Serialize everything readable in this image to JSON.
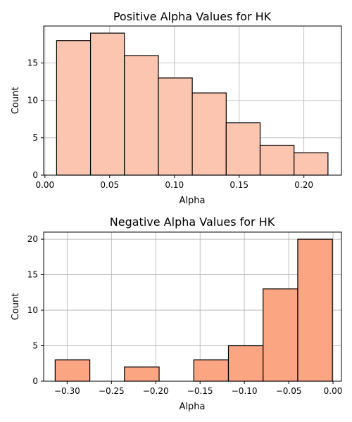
{
  "chart_data": [
    {
      "type": "bar",
      "title": "Positive Alpha Values for HK",
      "xlabel": "Alpha",
      "ylabel": "Count",
      "xlim": [
        -0.001,
        0.229
      ],
      "ylim": [
        0,
        19.95
      ],
      "xticks": [
        0.0,
        0.05,
        0.1,
        0.15,
        0.2
      ],
      "xtick_labels": [
        "0.00",
        "0.05",
        "0.10",
        "0.15",
        "0.20"
      ],
      "yticks": [
        0,
        5,
        10,
        15
      ],
      "ytick_labels": [
        "0",
        "5",
        "10",
        "15"
      ],
      "grid": true,
      "bin_edges": [
        0.009,
        0.0352,
        0.0614,
        0.0876,
        0.1138,
        0.14,
        0.1662,
        0.1924,
        0.2186
      ],
      "values": [
        18,
        19,
        16,
        13,
        11,
        7,
        4,
        3
      ],
      "color": "#fcc5b0"
    },
    {
      "type": "bar",
      "title": "Negative Alpha Values for HK",
      "xlabel": "Alpha",
      "ylabel": "Count",
      "xlim": [
        -0.3265,
        0.0095
      ],
      "ylim": [
        0,
        21
      ],
      "xticks": [
        -0.3,
        -0.25,
        -0.2,
        -0.15,
        -0.1,
        -0.05,
        0.0
      ],
      "xtick_labels": [
        "−0.30",
        "−0.25",
        "−0.20",
        "−0.15",
        "−0.10",
        "−0.05",
        "0.00"
      ],
      "yticks": [
        0,
        5,
        10,
        15,
        20
      ],
      "ytick_labels": [
        "0",
        "5",
        "10",
        "15",
        "20"
      ],
      "grid": true,
      "bin_edges": [
        -0.3135,
        -0.2744,
        -0.2353,
        -0.1962,
        -0.1571,
        -0.118,
        -0.0789,
        -0.0398,
        -0.0007
      ],
      "values": [
        3,
        0,
        2,
        0,
        3,
        5,
        13,
        20
      ],
      "color": "#fca582"
    }
  ]
}
